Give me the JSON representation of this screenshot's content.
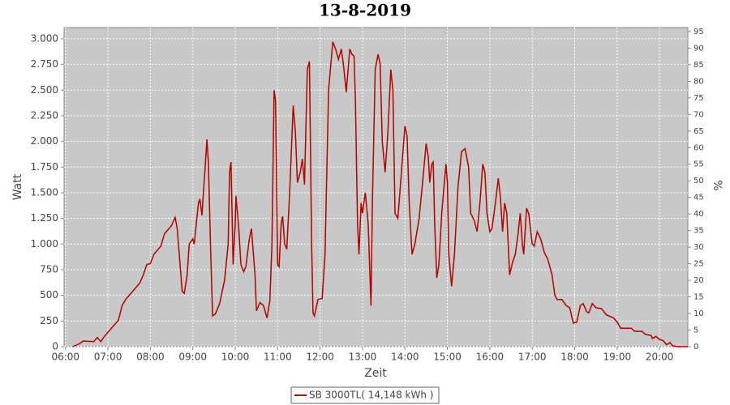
{
  "chart_data": {
    "type": "line",
    "title": "13-8-2019",
    "x_label": "Zeit",
    "y_label": "Watt",
    "y2_label": "%",
    "x": [
      "06:10",
      "06:20",
      "06:25",
      "06:40",
      "06:45",
      "06:50",
      "06:55",
      "07:05",
      "07:15",
      "07:20",
      "07:25",
      "07:35",
      "07:45",
      "07:50",
      "07:55",
      "08:00",
      "08:05",
      "08:15",
      "08:20",
      "08:30",
      "08:35",
      "08:38",
      "08:42",
      "08:45",
      "08:48",
      "08:52",
      "08:55",
      "09:00",
      "09:02",
      "09:05",
      "09:08",
      "09:10",
      "09:13",
      "09:17",
      "09:20",
      "09:22",
      "09:25",
      "09:28",
      "09:32",
      "09:38",
      "09:45",
      "09:50",
      "09:52",
      "09:54",
      "09:57",
      "10:00",
      "10:01",
      "10:05",
      "10:08",
      "10:12",
      "10:15",
      "10:20",
      "10:23",
      "10:28",
      "10:30",
      "10:35",
      "10:40",
      "10:45",
      "10:49",
      "10:52",
      "10:55",
      "10:57",
      "11:00",
      "11:02",
      "11:05",
      "11:07",
      "11:10",
      "11:13",
      "11:17",
      "11:22",
      "11:25",
      "11:28",
      "11:32",
      "11:35",
      "11:38",
      "11:42",
      "11:45",
      "11:48",
      "11:50",
      "11:52",
      "11:57",
      "12:03",
      "12:07",
      "12:12",
      "12:18",
      "12:22",
      "12:26",
      "12:30",
      "12:33",
      "12:37",
      "12:42",
      "12:45",
      "12:48",
      "12:50",
      "12:53",
      "12:55",
      "12:58",
      "13:00",
      "13:04",
      "13:08",
      "13:12",
      "13:14",
      "13:18",
      "13:22",
      "13:25",
      "13:28",
      "13:32",
      "13:36",
      "13:40",
      "13:43",
      "13:46",
      "13:50",
      "13:55",
      "14:00",
      "14:03",
      "14:06",
      "14:10",
      "14:14",
      "14:20",
      "14:25",
      "14:30",
      "14:33",
      "14:35",
      "14:38",
      "14:40",
      "14:42",
      "14:45",
      "14:48",
      "14:52",
      "14:58",
      "15:00",
      "15:02",
      "15:06",
      "15:10",
      "15:15",
      "15:20",
      "15:25",
      "15:30",
      "15:33",
      "15:38",
      "15:42",
      "15:46",
      "15:50",
      "15:53",
      "15:56",
      "16:00",
      "16:03",
      "16:08",
      "16:12",
      "16:15",
      "16:18",
      "16:21",
      "16:24",
      "16:28",
      "16:32",
      "16:36",
      "16:40",
      "16:43",
      "16:46",
      "16:48",
      "16:52",
      "16:55",
      "17:00",
      "17:03",
      "17:07",
      "17:12",
      "17:17",
      "17:22",
      "17:28",
      "17:32",
      "17:35",
      "17:42",
      "17:48",
      "17:53",
      "17:58",
      "18:03",
      "18:08",
      "18:12",
      "18:17",
      "18:20",
      "18:25",
      "18:30",
      "18:38",
      "18:45",
      "18:55",
      "19:00",
      "19:05",
      "19:20",
      "19:25",
      "19:35",
      "19:40",
      "19:48",
      "19:50",
      "19:55",
      "20:00",
      "20:05",
      "20:10",
      "20:15",
      "20:18",
      "20:25",
      "20:40"
    ],
    "series": [
      {
        "name": "SB 3000TL( 14,148 kWh )",
        "color": "#b00000",
        "values": [
          0,
          30,
          55,
          50,
          90,
          50,
          100,
          180,
          260,
          400,
          460,
          540,
          620,
          700,
          800,
          810,
          900,
          980,
          1100,
          1180,
          1260,
          1150,
          800,
          540,
          520,
          700,
          1000,
          1050,
          1000,
          1200,
          1400,
          1440,
          1280,
          1700,
          2020,
          1800,
          1000,
          300,
          320,
          420,
          650,
          1000,
          1700,
          1800,
          800,
          1200,
          1470,
          1150,
          800,
          730,
          780,
          1050,
          1150,
          700,
          350,
          430,
          400,
          280,
          450,
          1000,
          2500,
          2400,
          800,
          780,
          1200,
          1270,
          1000,
          950,
          1500,
          2350,
          2100,
          1600,
          1700,
          1830,
          1580,
          2700,
          2780,
          1000,
          330,
          300,
          460,
          470,
          900,
          2500,
          2970,
          2900,
          2800,
          2900,
          2750,
          2480,
          2900,
          2850,
          2830,
          2400,
          1200,
          900,
          1400,
          1300,
          1500,
          1200,
          400,
          1400,
          2700,
          2850,
          2750,
          2000,
          1700,
          2100,
          2700,
          2500,
          1300,
          1250,
          1700,
          2150,
          2050,
          1400,
          900,
          1000,
          1250,
          1600,
          1980,
          1850,
          1600,
          1780,
          1800,
          1200,
          670,
          800,
          1300,
          1780,
          1600,
          900,
          590,
          900,
          1550,
          1900,
          1930,
          1750,
          1300,
          1230,
          1120,
          1400,
          1780,
          1700,
          1300,
          1120,
          1150,
          1400,
          1640,
          1450,
          1120,
          1400,
          1300,
          700,
          820,
          900,
          1100,
          1300,
          1000,
          900,
          1350,
          1300,
          1000,
          980,
          1120,
          1050,
          920,
          850,
          700,
          500,
          460,
          460,
          400,
          380,
          230,
          240,
          400,
          420,
          340,
          330,
          420,
          380,
          370,
          310,
          280,
          240,
          180,
          180,
          150,
          150,
          120,
          110,
          80,
          100,
          70,
          60,
          20,
          40,
          10,
          0,
          0
        ]
      }
    ],
    "xlim": [
      "05:58",
      "20:40"
    ],
    "xticks": [
      "06:00",
      "07:00",
      "08:00",
      "09:00",
      "10:00",
      "11:00",
      "12:00",
      "13:00",
      "14:00",
      "15:00",
      "16:00",
      "17:00",
      "18:00",
      "19:00",
      "20:00"
    ],
    "ylim": [
      0,
      3110
    ],
    "yticks": [
      0,
      250,
      500,
      750,
      {
        "value": 1000,
        "label": "1.000"
      },
      {
        "value": 1250,
        "label": "1.250"
      },
      {
        "value": 1500,
        "label": "1.500"
      },
      {
        "value": 1750,
        "label": "1.750"
      },
      {
        "value": 2000,
        "label": "2.000"
      },
      {
        "value": 2250,
        "label": "2.250"
      },
      {
        "value": 2500,
        "label": "2.500"
      },
      {
        "value": 2750,
        "label": "2.750"
      },
      {
        "value": 3000,
        "label": "3.000"
      }
    ],
    "y2lim": [
      0,
      96.2
    ],
    "y2ticks": [
      0,
      5,
      10,
      15,
      20,
      25,
      30,
      35,
      40,
      45,
      50,
      55,
      60,
      65,
      70,
      75,
      80,
      85,
      90,
      95
    ],
    "grid": true,
    "legend": "bottom"
  }
}
